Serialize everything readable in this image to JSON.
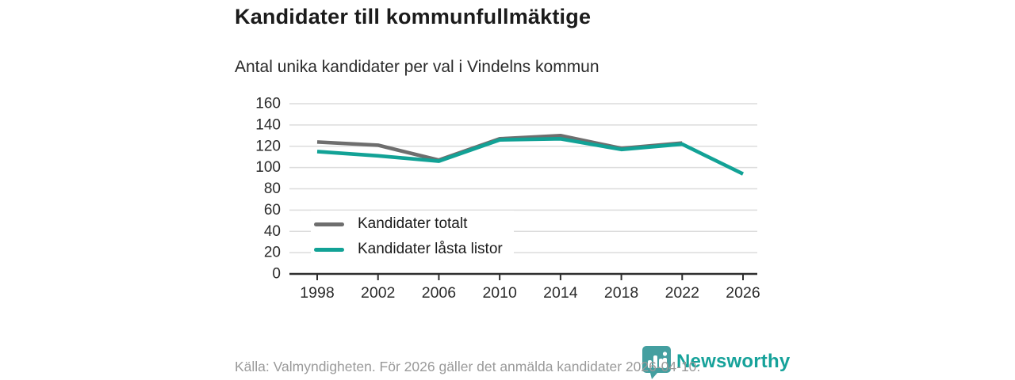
{
  "header": {
    "title": "Kandidater till kommunfullmäktige",
    "subtitle": "Antal unika kandidater per val i Vindelns kommun"
  },
  "chart_data": {
    "type": "line",
    "x": [
      1998,
      2002,
      2006,
      2010,
      2014,
      2018,
      2022,
      2026
    ],
    "series": [
      {
        "name": "Kandidater totalt",
        "color": "#6e6e6e",
        "values": [
          124,
          121,
          107,
          127,
          130,
          118,
          123,
          null
        ]
      },
      {
        "name": "Kandidater låsta listor",
        "color": "#12a296",
        "values": [
          115,
          111,
          106,
          126,
          127,
          117,
          122,
          94
        ]
      }
    ],
    "title": "Kandidater till kommunfullmäktige",
    "subtitle": "Antal unika kandidater per val i Vindelns kommun",
    "xlabel": "",
    "ylabel": "",
    "ylim": [
      0,
      160
    ],
    "ytick_step": 20,
    "grid": true,
    "legend_position": "inside-bottom-left"
  },
  "footer": {
    "source": "Källa: Valmyndigheten. För 2026 gäller det anmälda kandidater 2026-04-10."
  },
  "brand": {
    "name": "Newsworthy",
    "icon": "newsworthy-pin-barchart-icon",
    "wordmark_color": "#16a29a",
    "icon_color": "#449fa0"
  },
  "style": {
    "gridline_color": "#dcdcdc",
    "axis_color": "#2e2e2e",
    "tick_label_color": "#2b2b2b"
  }
}
